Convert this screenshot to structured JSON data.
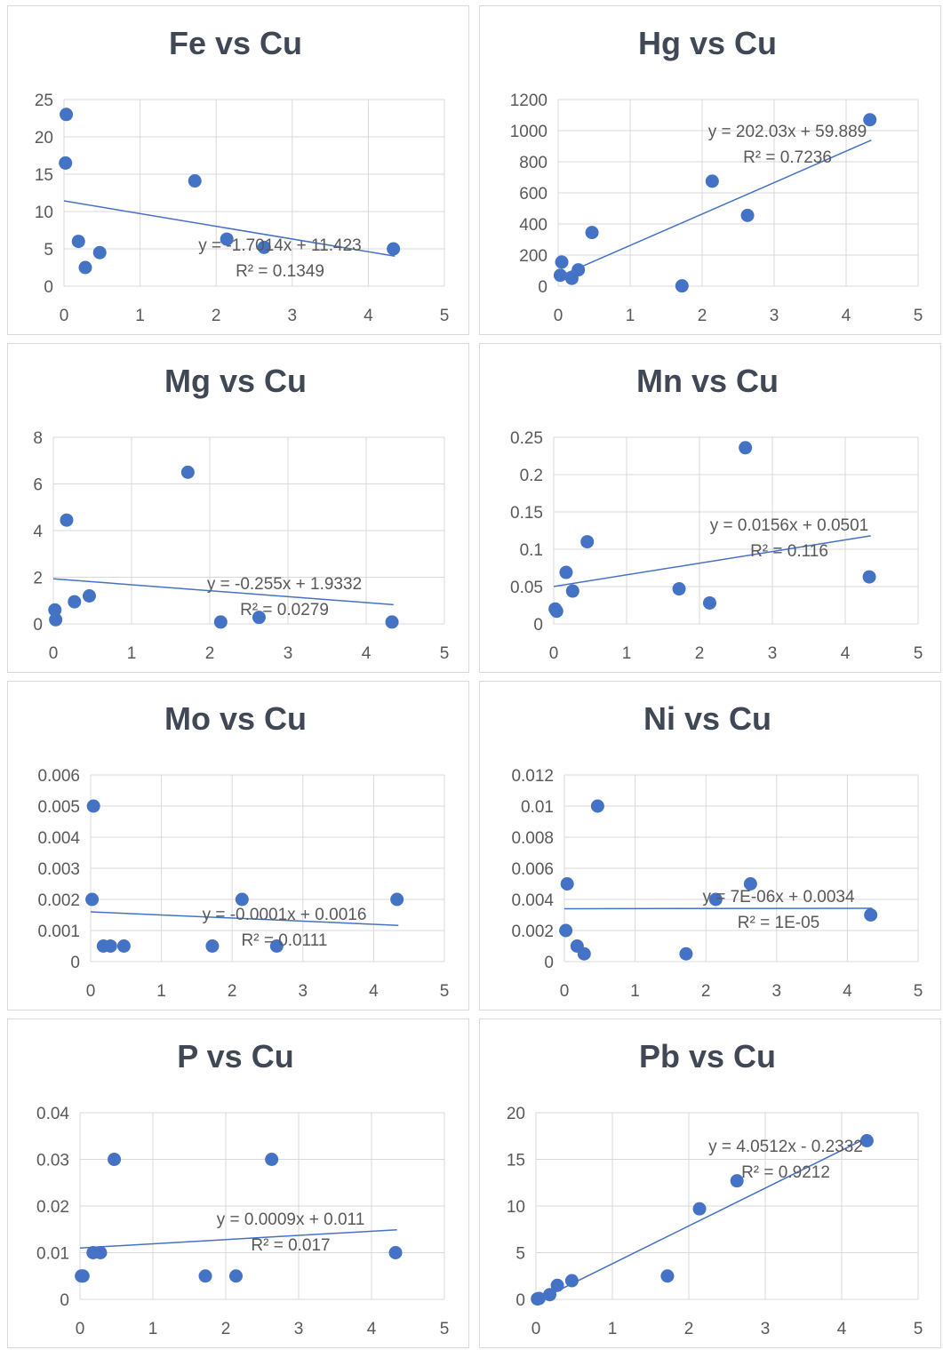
{
  "chart_data": [
    {
      "type": "scatter",
      "title": "Fe vs Cu",
      "xlim": [
        0,
        5
      ],
      "xticks": [
        "0",
        "1",
        "2",
        "3",
        "4",
        "5"
      ],
      "ylim": [
        0,
        25
      ],
      "yticks": [
        "0",
        "5",
        "10",
        "15",
        "20",
        "25"
      ],
      "grid": true,
      "points": [
        [
          0.03,
          23
        ],
        [
          0.02,
          16.5
        ],
        [
          0.19,
          6
        ],
        [
          0.28,
          2.5
        ],
        [
          0.47,
          4.5
        ],
        [
          1.72,
          14.1
        ],
        [
          2.14,
          6.3
        ],
        [
          2.63,
          5.2
        ],
        [
          4.33,
          5
        ]
      ],
      "trendline": {
        "slope": -1.7014,
        "intercept": 11.423,
        "x": [
          0,
          4.35
        ]
      },
      "equation": "y = -1.7014x + 11.423",
      "r2": "R² = 0.1349"
    },
    {
      "type": "scatter",
      "title": "Hg vs Cu",
      "xlim": [
        0,
        5
      ],
      "xticks": [
        "0",
        "1",
        "2",
        "3",
        "4",
        "5"
      ],
      "ylim": [
        0,
        1200
      ],
      "yticks": [
        "0",
        "200",
        "400",
        "600",
        "800",
        "1000",
        "1200"
      ],
      "grid": true,
      "points": [
        [
          0.03,
          70
        ],
        [
          0.05,
          155
        ],
        [
          0.19,
          50
        ],
        [
          0.28,
          105
        ],
        [
          0.47,
          345
        ],
        [
          1.72,
          2
        ],
        [
          2.14,
          675
        ],
        [
          2.63,
          455
        ],
        [
          4.33,
          1070
        ]
      ],
      "trendline": {
        "slope": 202.03,
        "intercept": 59.889,
        "x": [
          0,
          4.35
        ]
      },
      "equation": "y = 202.03x + 59.889",
      "r2": "R² = 0.7236"
    },
    {
      "type": "scatter",
      "title": "Mg vs Cu",
      "xlim": [
        0,
        5
      ],
      "xticks": [
        "0",
        "1",
        "2",
        "3",
        "4",
        "5"
      ],
      "ylim": [
        0,
        8
      ],
      "yticks": [
        "0",
        "2",
        "4",
        "6",
        "8"
      ],
      "grid": true,
      "points": [
        [
          0.02,
          0.6
        ],
        [
          0.03,
          0.18
        ],
        [
          0.17,
          4.45
        ],
        [
          0.27,
          0.95
        ],
        [
          0.46,
          1.2
        ],
        [
          1.72,
          6.5
        ],
        [
          2.14,
          0.08
        ],
        [
          2.63,
          0.28
        ],
        [
          4.33,
          0.08
        ]
      ],
      "trendline": {
        "slope": -0.255,
        "intercept": 1.9332,
        "x": [
          0,
          4.35
        ]
      },
      "equation": "y = -0.255x + 1.9332",
      "r2": "R² = 0.0279"
    },
    {
      "type": "scatter",
      "title": "Mn vs Cu",
      "xlim": [
        0,
        5
      ],
      "xticks": [
        "0",
        "1",
        "2",
        "3",
        "4",
        "5"
      ],
      "ylim": [
        0,
        0.25
      ],
      "yticks": [
        "0",
        "0.05",
        "0.1",
        "0.15",
        "0.2",
        "0.25"
      ],
      "grid": true,
      "points": [
        [
          0.02,
          0.02
        ],
        [
          0.04,
          0.017
        ],
        [
          0.17,
          0.069
        ],
        [
          0.26,
          0.044
        ],
        [
          0.46,
          0.11
        ],
        [
          1.72,
          0.047
        ],
        [
          2.14,
          0.028
        ],
        [
          2.63,
          0.236
        ],
        [
          4.33,
          0.063
        ]
      ],
      "trendline": {
        "slope": 0.0156,
        "intercept": 0.0501,
        "x": [
          0,
          4.35
        ]
      },
      "equation": "y = 0.0156x + 0.0501",
      "r2": "R² = 0.116"
    },
    {
      "type": "scatter",
      "title": "Mo vs Cu",
      "xlim": [
        0,
        5
      ],
      "xticks": [
        "0",
        "1",
        "2",
        "3",
        "4",
        "5"
      ],
      "ylim": [
        0,
        0.006
      ],
      "yticks": [
        "0",
        "0.001",
        "0.002",
        "0.003",
        "0.004",
        "0.005",
        "0.006"
      ],
      "grid": true,
      "points": [
        [
          0.02,
          0.002
        ],
        [
          0.04,
          0.005
        ],
        [
          0.18,
          0.0005
        ],
        [
          0.28,
          0.0005
        ],
        [
          0.47,
          0.0005
        ],
        [
          1.72,
          0.0005
        ],
        [
          2.14,
          0.002
        ],
        [
          2.63,
          0.0005
        ],
        [
          4.33,
          0.002
        ]
      ],
      "trendline": {
        "slope": -0.0001,
        "intercept": 0.0016,
        "x": [
          0,
          4.35
        ]
      },
      "equation": "y = -0.0001x + 0.0016",
      "r2": "R² = 0.0111"
    },
    {
      "type": "scatter",
      "title": "Ni vs Cu",
      "xlim": [
        0,
        5
      ],
      "xticks": [
        "0",
        "1",
        "2",
        "3",
        "4",
        "5"
      ],
      "ylim": [
        0,
        0.012
      ],
      "yticks": [
        "0",
        "0.002",
        "0.004",
        "0.006",
        "0.008",
        "0.01",
        "0.012"
      ],
      "grid": true,
      "points": [
        [
          0.02,
          0.002
        ],
        [
          0.04,
          0.005
        ],
        [
          0.18,
          0.001
        ],
        [
          0.28,
          0.0005
        ],
        [
          0.47,
          0.01
        ],
        [
          1.72,
          0.0005
        ],
        [
          2.14,
          0.004
        ],
        [
          2.63,
          0.005
        ],
        [
          4.33,
          0.003
        ]
      ],
      "trendline": {
        "slope": 7e-06,
        "intercept": 0.0034,
        "x": [
          0,
          4.35
        ]
      },
      "equation": "y = 7E-06x + 0.0034",
      "r2": "R² = 1E-05"
    },
    {
      "type": "scatter",
      "title": "P vs Cu",
      "xlim": [
        0,
        5
      ],
      "xticks": [
        "0",
        "1",
        "2",
        "3",
        "4",
        "5"
      ],
      "ylim": [
        0,
        0.04
      ],
      "yticks": [
        "0",
        "0.01",
        "0.02",
        "0.03",
        "0.04"
      ],
      "grid": true,
      "points": [
        [
          0.02,
          0.005
        ],
        [
          0.04,
          0.005
        ],
        [
          0.18,
          0.01
        ],
        [
          0.28,
          0.01
        ],
        [
          0.47,
          0.03
        ],
        [
          1.72,
          0.005
        ],
        [
          2.14,
          0.005
        ],
        [
          2.63,
          0.03
        ],
        [
          4.33,
          0.01
        ]
      ],
      "trendline": {
        "slope": 0.0009,
        "intercept": 0.011,
        "x": [
          0,
          4.35
        ]
      },
      "equation": "y = 0.0009x + 0.011",
      "r2": "R² = 0.017"
    },
    {
      "type": "scatter",
      "title": "Pb vs Cu",
      "xlim": [
        0,
        5
      ],
      "xticks": [
        "0",
        "1",
        "2",
        "3",
        "4",
        "5"
      ],
      "ylim": [
        0,
        20
      ],
      "yticks": [
        "0",
        "5",
        "10",
        "15",
        "20"
      ],
      "grid": true,
      "points": [
        [
          0.02,
          0.05
        ],
        [
          0.04,
          0.1
        ],
        [
          0.18,
          0.5
        ],
        [
          0.28,
          1.5
        ],
        [
          0.47,
          2
        ],
        [
          1.72,
          2.5
        ],
        [
          2.14,
          9.7
        ],
        [
          2.63,
          12.7
        ],
        [
          4.33,
          17
        ]
      ],
      "trendline": {
        "slope": 4.0512,
        "intercept": -0.2332,
        "x": [
          0,
          4.35
        ]
      },
      "equation": "y = 4.0512x - 0.2332",
      "r2": "R² = 0.9212"
    }
  ],
  "colors": {
    "point": "#4472c4",
    "trendline": "#4472c4",
    "grid": "#d9d9d9",
    "tick_text": "#595959",
    "title_text": "#404855",
    "label_text": "#595959"
  }
}
